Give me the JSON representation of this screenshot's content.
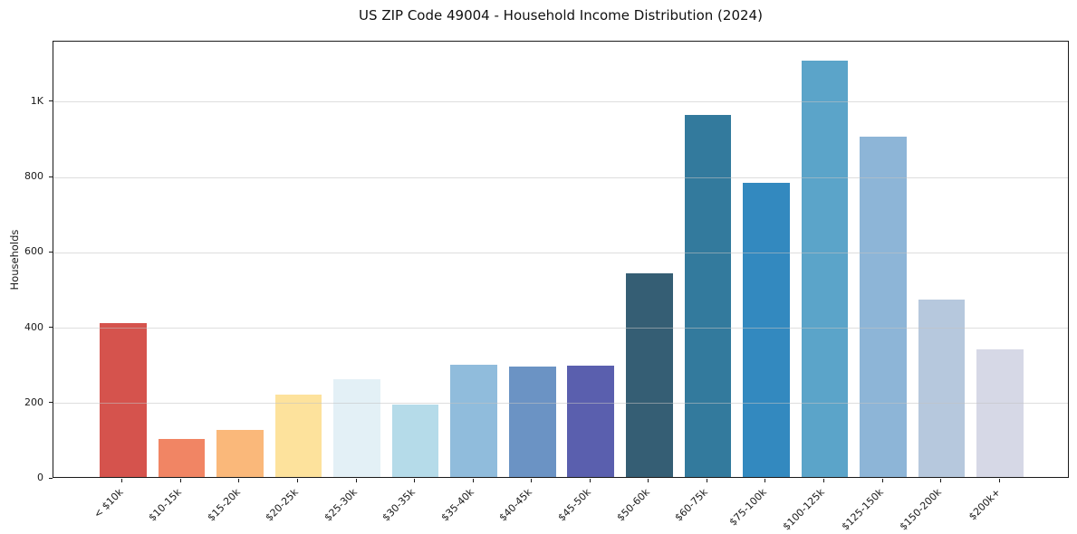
{
  "chart_data": {
    "type": "bar",
    "title": "US ZIP Code 49004 - Household Income Distribution (2024)",
    "xlabel": "",
    "ylabel": "Households",
    "categories": [
      "< $10k",
      "$10-15k",
      "$15-20k",
      "$20-25k",
      "$25-30k",
      "$30-35k",
      "$35-40k",
      "$40-45k",
      "$45-50k",
      "$50-60k",
      "$60-75k",
      "$75-100k",
      "$100-125k",
      "$125-150k",
      "$150-200k",
      "$200k+"
    ],
    "values": [
      408,
      101,
      125,
      218,
      259,
      193,
      298,
      293,
      296,
      542,
      961,
      781,
      1106,
      904,
      470,
      338
    ],
    "bar_colors": [
      "#d5534d",
      "#f18564",
      "#fab87a",
      "#fde29c",
      "#e3f0f6",
      "#b5dbe9",
      "#90bcdc",
      "#6b93c4",
      "#5a5fae",
      "#355e74",
      "#337a9d",
      "#3389bf",
      "#5ba4c9",
      "#8db5d7",
      "#b6c8dd",
      "#d6d8e6"
    ],
    "ylim": [
      0,
      1161
    ],
    "xlim": [
      -1.19,
      16.19
    ],
    "bar_width_units": 0.8,
    "yticks": [
      {
        "value": 0,
        "label": "0"
      },
      {
        "value": 200,
        "label": "200"
      },
      {
        "value": 400,
        "label": "400"
      },
      {
        "value": 600,
        "label": "600"
      },
      {
        "value": 800,
        "label": "800"
      },
      {
        "value": 1000,
        "label": "1K"
      }
    ],
    "grid": "horizontal",
    "legend": "none",
    "xtick_rotation_deg": 45
  },
  "colors": {
    "background": "#ffffff",
    "spine": "#1a1a1a",
    "gridline": "#c9c9c9",
    "text": "#1a1a1a"
  }
}
